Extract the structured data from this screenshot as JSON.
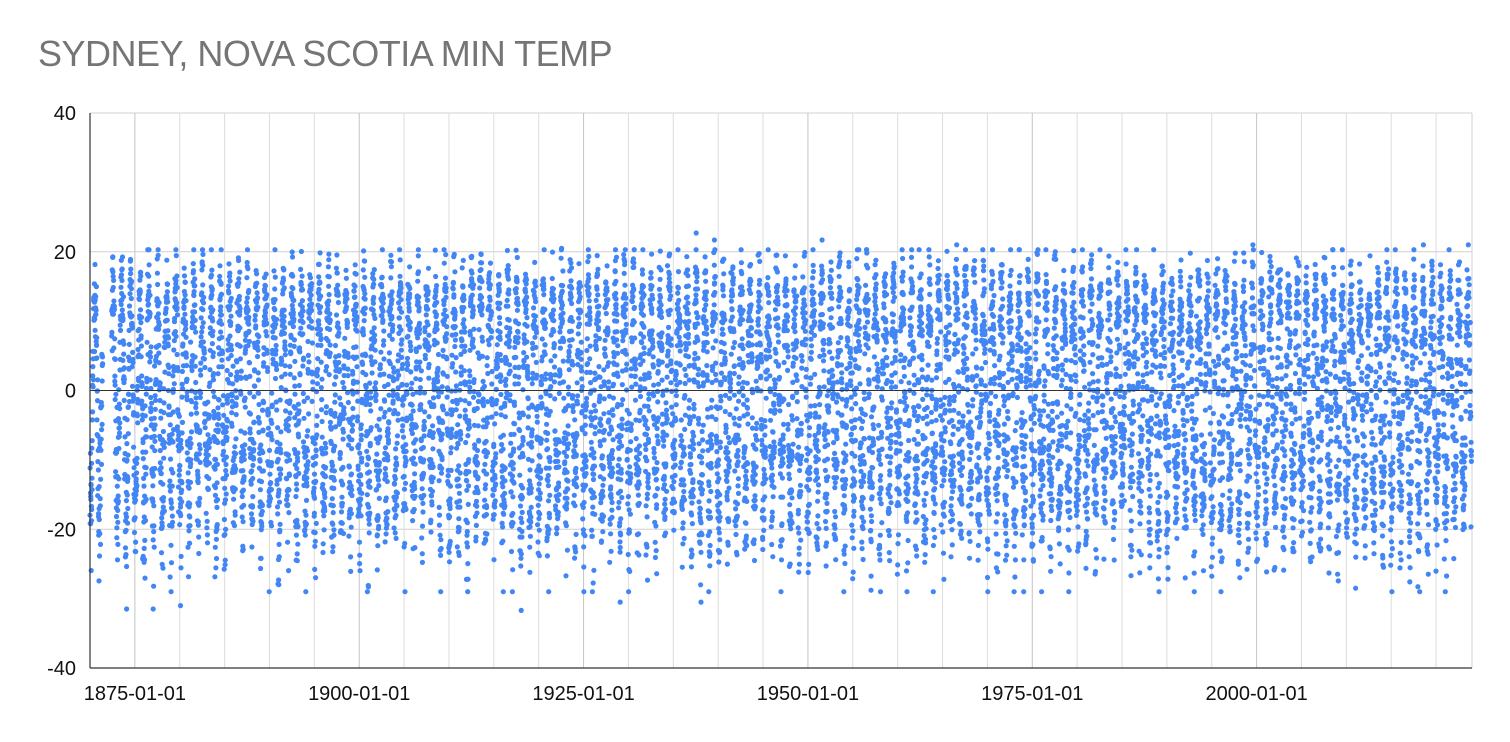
{
  "chart_data": {
    "type": "scatter",
    "title": "SYDNEY, NOVA SCOTIA MIN TEMP",
    "xlabel": "",
    "ylabel": "",
    "x_ticks": [
      "1875-01-01",
      "1900-01-01",
      "1925-01-01",
      "1950-01-01",
      "1975-01-01",
      "2000-01-01"
    ],
    "y_ticks": [
      40,
      20,
      0,
      -20,
      -40
    ],
    "xlim": [
      "1870-01-01",
      "2024-01-01"
    ],
    "ylim": [
      -40,
      40
    ],
    "grid": true,
    "legend": "none",
    "series": [
      {
        "marker_color": "#4285F4",
        "data_gap": [
          "1871-06-01",
          "1872-06-01"
        ],
        "seasonal_summary": {
          "summer_max_typical": 18.5,
          "summer_max_extreme": 22.7,
          "winter_min_typical": -21,
          "winter_min_extreme": -31.7,
          "central_band": [
            -6,
            6
          ]
        },
        "notable_points": [
          {
            "x": "1874-02-01",
            "y": -31.5
          },
          {
            "x": "1877-01-15",
            "y": -31.5
          },
          {
            "x": "1880-02-01",
            "y": -31.0
          },
          {
            "x": "1918-01-20",
            "y": -31.7
          },
          {
            "x": "1929-02-01",
            "y": -30.5
          },
          {
            "x": "1938-02-01",
            "y": -30.5
          },
          {
            "x": "1990-02-10",
            "y": -27.2
          },
          {
            "x": "1937-07-20",
            "y": 22.7
          },
          {
            "x": "1939-08-01",
            "y": 21.7
          },
          {
            "x": "1951-08-01",
            "y": 21.7
          },
          {
            "x": "1966-08-01",
            "y": 21.0
          },
          {
            "x": "1922-07-20",
            "y": 20.5
          },
          {
            "x": "1999-08-01",
            "y": 21.0
          },
          {
            "x": "2018-08-01",
            "y": 21.0
          },
          {
            "x": "2023-08-01",
            "y": 21.0
          }
        ]
      }
    ]
  }
}
